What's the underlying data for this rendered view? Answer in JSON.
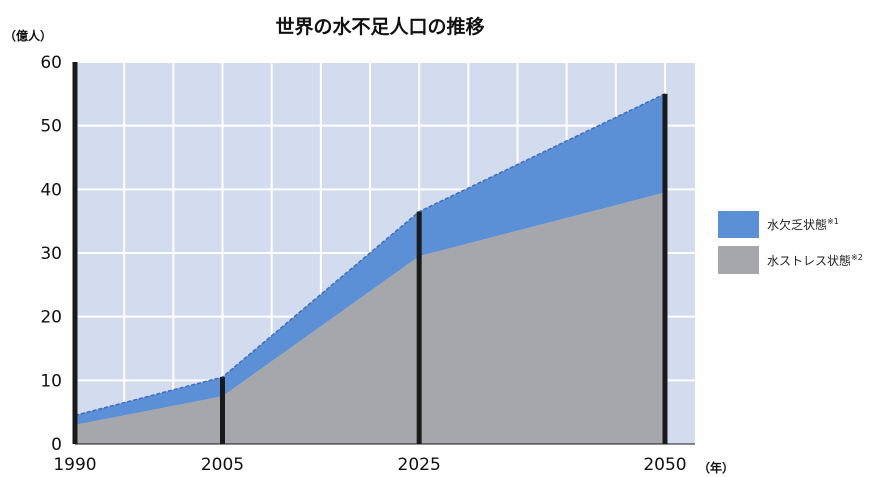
{
  "chart_data": {
    "type": "area",
    "title": "世界の水不足人口の推移",
    "ylabel": "（億人）",
    "xlabel": "（年）",
    "x": [
      1990,
      2005,
      2025,
      2050
    ],
    "xticks": [
      "1990",
      "2005",
      "2025",
      "2050"
    ],
    "yticks": [
      "0",
      "10",
      "20",
      "30",
      "40",
      "50",
      "60"
    ],
    "ylim": [
      0,
      60
    ],
    "grid": true,
    "stacked": true,
    "legend_position": "right",
    "series": [
      {
        "name": "水ストレス状態",
        "note": "※2",
        "color": "#a5a7ab",
        "values": [
          3,
          7.5,
          29.5,
          39.5
        ]
      },
      {
        "name": "水欠乏状態",
        "note": "※1",
        "color": "#5b8fd6",
        "values": [
          1.5,
          3,
          7,
          15.5
        ]
      }
    ]
  },
  "colors": {
    "plot_bg": "#d3dcee",
    "grid": "#ffffff",
    "bar": "#1a1a1a"
  }
}
